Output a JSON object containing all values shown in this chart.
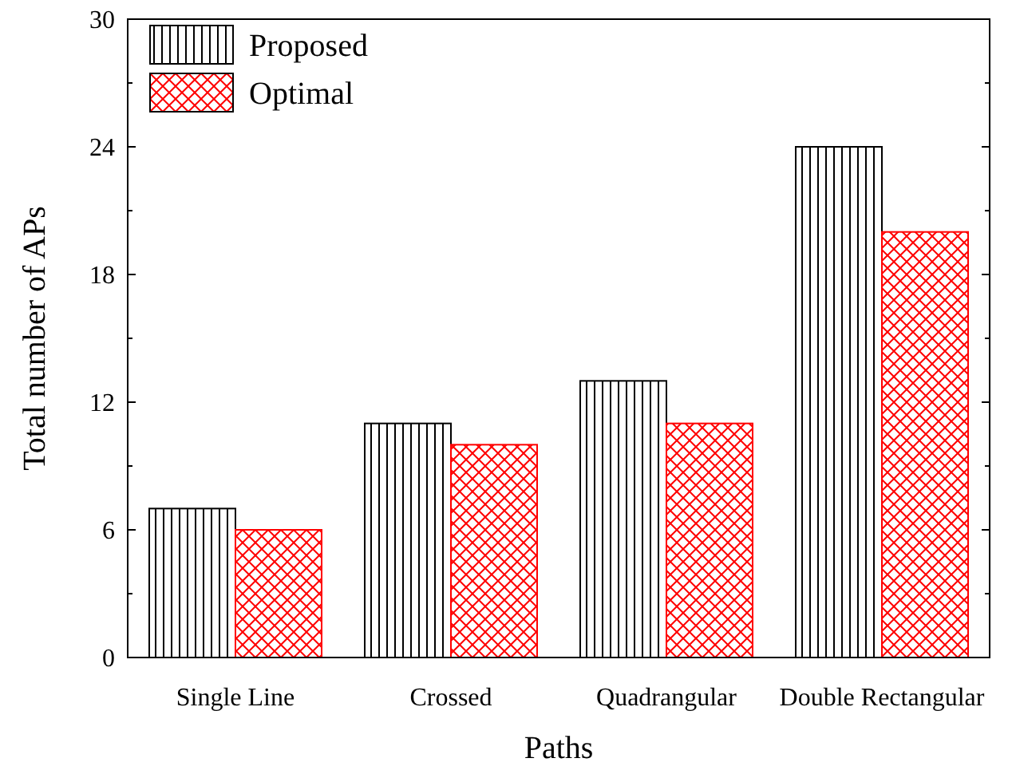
{
  "chart_data": {
    "type": "bar",
    "xlabel": "Paths",
    "ylabel": "Total number of APs",
    "categories": [
      "Single Line",
      "Crossed",
      "Quadrangular",
      "Double Rectangular"
    ],
    "series": [
      {
        "name": "Proposed",
        "color": "#000000",
        "values": [
          7,
          11,
          13,
          24
        ]
      },
      {
        "name": "Optimal",
        "color": "#ff0000",
        "values": [
          6,
          10,
          11,
          20
        ]
      }
    ],
    "ylim": [
      0,
      30
    ],
    "yticks": [
      0,
      6,
      12,
      18,
      24,
      30
    ],
    "grid": false,
    "legend": "top left"
  }
}
